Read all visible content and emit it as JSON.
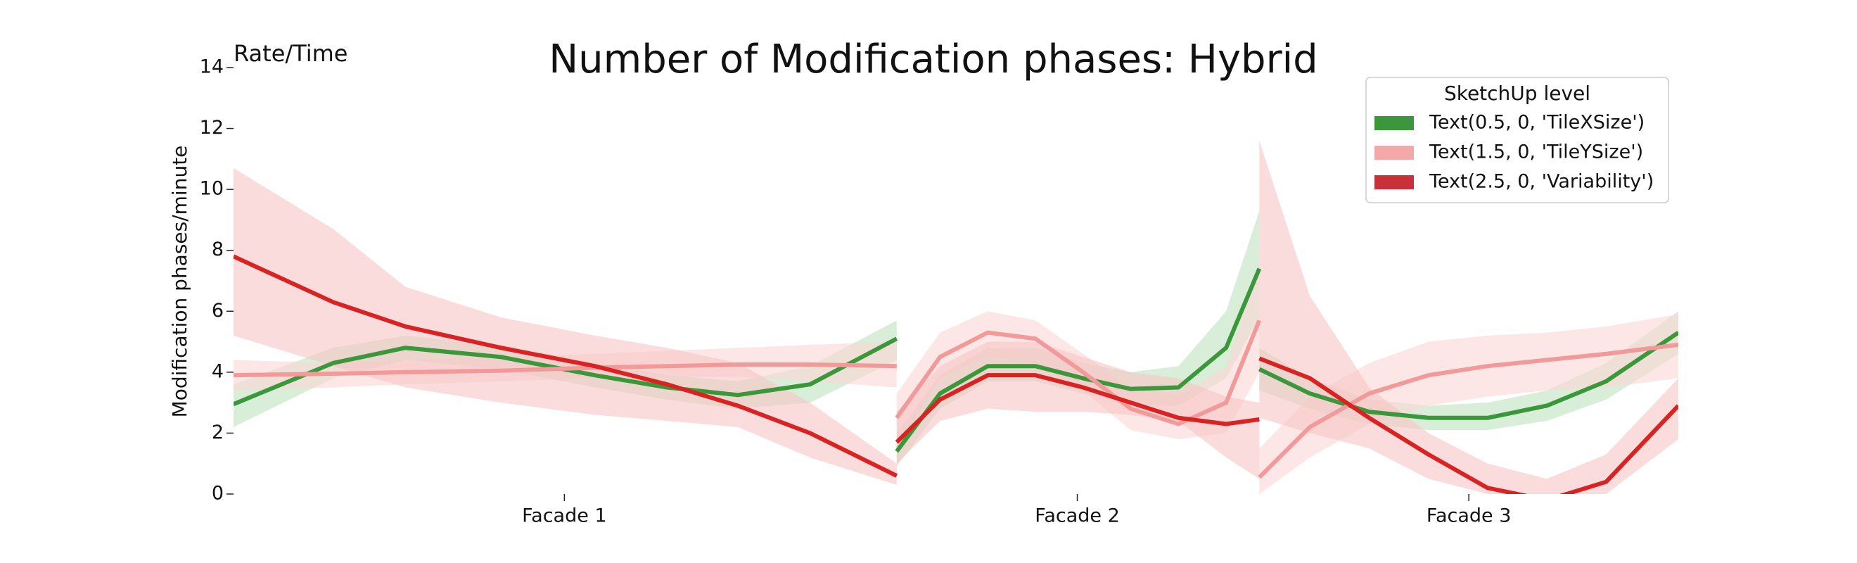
{
  "chart_data": {
    "type": "line",
    "title": "Number of Modification phases: Hybrid",
    "annotation": "Rate/Time",
    "ylabel": "Modification phases/minute",
    "xlim": [
      0,
      100
    ],
    "ylim": [
      0,
      14
    ],
    "yticks": [
      0,
      2,
      4,
      6,
      8,
      10,
      12,
      14
    ],
    "xticks": [
      {
        "value": 22.9,
        "label": "Facade 1"
      },
      {
        "value": 58.4,
        "label": "Facade 2"
      },
      {
        "value": 85.5,
        "label": "Facade 3"
      }
    ],
    "legend": {
      "title": "SketchUp level",
      "loc": "upper right"
    },
    "x": [
      0,
      6.9,
      11.9,
      18.5,
      25.0,
      30.0,
      34.9,
      39.9,
      45.9,
      null,
      45.9,
      48.9,
      52.2,
      55.5,
      58.8,
      62.1,
      65.4,
      68.7,
      71.0,
      null,
      71.0,
      74.5,
      78.6,
      82.7,
      86.8,
      90.9,
      95.0,
      100
    ],
    "series": [
      {
        "name": "Text(0.5, 0, 'TileXSize')",
        "color": "#3a973a",
        "band_color": "#bfe3bf",
        "legend_color": "#3c963c",
        "values": [
          2.95,
          4.3,
          4.8,
          4.5,
          3.9,
          3.5,
          3.25,
          3.6,
          5.1,
          null,
          1.4,
          3.3,
          4.2,
          4.2,
          3.8,
          3.45,
          3.5,
          4.8,
          7.4,
          null,
          4.1,
          3.3,
          2.7,
          2.5,
          2.5,
          2.9,
          3.7,
          5.3
        ],
        "upper": [
          3.6,
          4.8,
          5.2,
          4.9,
          4.3,
          3.9,
          3.7,
          4.2,
          5.7,
          null,
          2.0,
          3.9,
          4.8,
          4.8,
          4.3,
          4.0,
          4.2,
          6.0,
          9.3,
          null,
          4.8,
          3.8,
          3.1,
          2.9,
          3.0,
          3.4,
          4.3,
          6.0
        ],
        "lower": [
          2.2,
          3.8,
          4.4,
          4.1,
          3.5,
          3.1,
          2.8,
          3.0,
          4.4,
          null,
          0.9,
          2.8,
          3.7,
          3.7,
          3.3,
          2.9,
          2.9,
          3.8,
          5.8,
          null,
          3.4,
          2.8,
          2.3,
          2.1,
          2.1,
          2.4,
          3.1,
          4.6
        ]
      },
      {
        "name": "Text(1.5, 0, 'TileYSize')",
        "color": "#f29a9a",
        "band_color": "#fbd6d6",
        "legend_color": "#f4a8a8",
        "values": [
          3.9,
          3.95,
          4.0,
          4.05,
          4.15,
          4.2,
          4.25,
          4.25,
          4.2,
          null,
          2.5,
          4.5,
          5.3,
          5.1,
          4.0,
          2.8,
          2.3,
          3.0,
          5.7,
          null,
          0.55,
          2.2,
          3.3,
          3.9,
          4.2,
          4.4,
          4.6,
          4.9
        ],
        "upper": [
          4.4,
          4.3,
          4.4,
          4.5,
          4.6,
          4.7,
          4.8,
          4.9,
          5.0,
          null,
          3.3,
          5.3,
          6.0,
          5.7,
          4.6,
          3.5,
          3.2,
          4.2,
          7.5,
          null,
          1.5,
          3.2,
          4.3,
          5.0,
          5.2,
          5.3,
          5.5,
          5.9
        ],
        "lower": [
          3.4,
          3.5,
          3.6,
          3.7,
          3.8,
          3.85,
          3.85,
          3.7,
          3.5,
          null,
          1.5,
          3.8,
          4.5,
          4.3,
          3.4,
          2.1,
          1.8,
          2.0,
          4.0,
          null,
          0,
          1.2,
          2.3,
          2.9,
          3.2,
          3.4,
          3.5,
          3.8
        ]
      },
      {
        "name": "Text(2.5, 0, 'Variability')",
        "color": "#d92323",
        "band_color": "#f7c4c4",
        "legend_color": "#c8303a",
        "values": [
          7.8,
          6.3,
          5.5,
          4.8,
          4.2,
          3.6,
          2.9,
          2.0,
          0.6,
          null,
          1.7,
          3.1,
          3.9,
          3.9,
          3.5,
          3.0,
          2.5,
          2.3,
          2.45,
          null,
          4.45,
          3.8,
          2.5,
          1.3,
          0.2,
          -0.2,
          0.4,
          2.9
        ],
        "upper": [
          10.7,
          8.7,
          6.8,
          5.8,
          5.2,
          4.8,
          4.3,
          3.0,
          1.0,
          null,
          2.7,
          4.2,
          5.0,
          5.0,
          4.5,
          4.0,
          3.8,
          3.2,
          3.0,
          null,
          11.6,
          6.5,
          3.5,
          2.0,
          1.0,
          0.5,
          1.3,
          3.8
        ],
        "lower": [
          5.2,
          4.2,
          3.5,
          3.0,
          2.6,
          2.4,
          2.2,
          1.2,
          0.3,
          null,
          1.0,
          2.4,
          2.8,
          2.7,
          2.7,
          2.6,
          2.4,
          1.2,
          0.5,
          null,
          2.5,
          2.0,
          1.5,
          0.5,
          0,
          0,
          0,
          1.8
        ]
      }
    ]
  }
}
